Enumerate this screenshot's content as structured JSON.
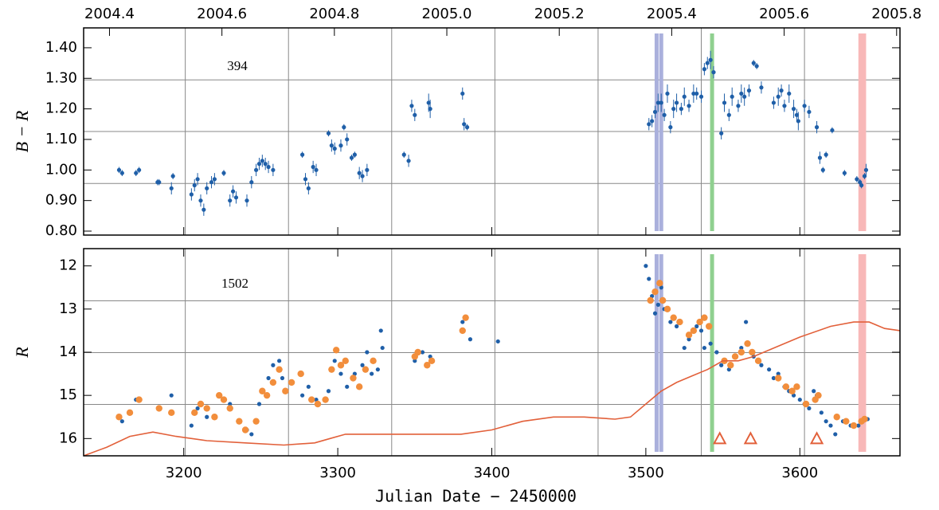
{
  "chart_data": [
    {
      "type": "scatter",
      "ylabel": "B − R",
      "annotation": "394",
      "xlim": [
        3135,
        3665
      ],
      "ylim": [
        0.787,
        1.465
      ],
      "xticks": [
        3200,
        3300,
        3400,
        3500,
        3600
      ],
      "yticks": [
        {
          "value": 0.8,
          "label": "0.80"
        },
        {
          "value": 0.9,
          "label": "0.90"
        },
        {
          "value": 1.0,
          "label": "1.00"
        },
        {
          "value": 1.1,
          "label": "1.10"
        },
        {
          "value": 1.2,
          "label": "1.20"
        },
        {
          "value": 1.3,
          "label": "1.30"
        },
        {
          "value": 1.4,
          "label": "1.40"
        }
      ],
      "x2lim": [
        2004.354,
        2005.806
      ],
      "x2ticks": [
        2004.4,
        2004.6,
        2004.8,
        {
          "value": 2005.0,
          "label": "2005.0"
        },
        2005.2,
        2005.4,
        2005.6,
        2005.8
      ],
      "xgrid": [
        3201,
        3268,
        3335,
        3402,
        3469,
        3536,
        3603
      ],
      "ygrid": [
        0.956,
        1.126,
        1.295
      ],
      "spans": [
        {
          "x0": 3507,
          "x1": 3507,
          "color": "#aab0dc"
        },
        {
          "x0": 3510,
          "x1": 3510,
          "color": "#aab0dc"
        },
        {
          "x0": 3543,
          "x1": 3543,
          "color": "#8fd08f"
        },
        {
          "x0": 3638,
          "x1": 3643,
          "color": "#f8b8b8"
        }
      ],
      "series": [
        {
          "color": "#1f5fa8",
          "x": [
            3158,
            3160,
            3169,
            3171,
            3183,
            3184,
            3192,
            3193,
            3205,
            3207,
            3209,
            3211,
            3213,
            3215,
            3218,
            3220,
            3226,
            3230,
            3232,
            3234,
            3241,
            3244,
            3247,
            3249,
            3251,
            3253,
            3255,
            3258,
            3277,
            3279,
            3281,
            3284,
            3286,
            3294,
            3296,
            3298,
            3302,
            3304,
            3306,
            3309,
            3311,
            3314,
            3316,
            3319,
            3343,
            3346,
            3348,
            3350,
            3359,
            3360,
            3381,
            3382,
            3384,
            3502,
            3504,
            3506,
            3508,
            3510,
            3512,
            3514,
            3516,
            3518,
            3520,
            3523,
            3525,
            3528,
            3531,
            3533,
            3536,
            3538,
            3540,
            3542,
            3544,
            3549,
            3551,
            3554,
            3556,
            3560,
            3562,
            3564,
            3567,
            3570,
            3572,
            3575,
            3583,
            3586,
            3588,
            3590,
            3593,
            3596,
            3598,
            3599,
            3603,
            3606,
            3611,
            3613,
            3615,
            3617,
            3621,
            3629,
            3637,
            3639,
            3640,
            3642,
            3643
          ],
          "values": [
            1.0,
            0.99,
            0.99,
            1.0,
            0.96,
            0.96,
            0.94,
            0.98,
            0.92,
            0.95,
            0.97,
            0.9,
            0.87,
            0.94,
            0.96,
            0.97,
            0.99,
            0.9,
            0.93,
            0.91,
            0.9,
            0.96,
            1.0,
            1.02,
            1.03,
            1.02,
            1.01,
            1.0,
            1.05,
            0.97,
            0.94,
            1.01,
            1.0,
            1.12,
            1.08,
            1.07,
            1.08,
            1.14,
            1.1,
            1.04,
            1.05,
            0.99,
            0.98,
            1.0,
            1.05,
            1.03,
            1.21,
            1.18,
            1.22,
            1.2,
            1.25,
            1.15,
            1.14,
            1.15,
            1.16,
            1.19,
            1.22,
            1.22,
            1.18,
            1.25,
            1.14,
            1.2,
            1.22,
            1.2,
            1.24,
            1.21,
            1.25,
            1.25,
            1.24,
            1.33,
            1.35,
            1.36,
            1.32,
            1.12,
            1.22,
            1.18,
            1.24,
            1.21,
            1.25,
            1.24,
            1.26,
            1.35,
            1.34,
            1.27,
            1.22,
            1.24,
            1.26,
            1.21,
            1.25,
            1.2,
            1.18,
            1.16,
            1.21,
            1.19,
            1.14,
            1.04,
            1.0,
            1.05,
            1.13,
            0.99,
            0.97,
            0.96,
            0.95,
            0.98,
            1.0
          ],
          "errors": [
            0.01,
            0.01,
            0.01,
            0.01,
            0.01,
            0.01,
            0.02,
            0.01,
            0.02,
            0.02,
            0.02,
            0.02,
            0.02,
            0.02,
            0.02,
            0.02,
            0.01,
            0.02,
            0.02,
            0.02,
            0.02,
            0.02,
            0.02,
            0.02,
            0.02,
            0.02,
            0.02,
            0.02,
            0.01,
            0.02,
            0.02,
            0.02,
            0.02,
            0.01,
            0.02,
            0.02,
            0.02,
            0.01,
            0.02,
            0.01,
            0.01,
            0.02,
            0.02,
            0.02,
            0.01,
            0.02,
            0.02,
            0.02,
            0.03,
            0.03,
            0.02,
            0.02,
            0.01,
            0.02,
            0.02,
            0.02,
            0.03,
            0.03,
            0.02,
            0.03,
            0.02,
            0.03,
            0.03,
            0.02,
            0.03,
            0.02,
            0.03,
            0.02,
            0.02,
            0.02,
            0.02,
            0.03,
            0.02,
            0.02,
            0.03,
            0.02,
            0.03,
            0.02,
            0.03,
            0.03,
            0.02,
            0.01,
            0.01,
            0.02,
            0.02,
            0.03,
            0.02,
            0.02,
            0.03,
            0.03,
            0.02,
            0.03,
            0.02,
            0.02,
            0.02,
            0.02,
            0.01,
            0.01,
            0.01,
            0.01,
            0.01,
            0.01,
            0.01,
            0.01,
            0.02
          ]
        }
      ]
    },
    {
      "type": "scatter",
      "ylabel": "R",
      "annotation": "1502",
      "xlabel": "Julian Date − 2450000",
      "xlim": [
        3135,
        3665
      ],
      "ylim": [
        16.4,
        11.6
      ],
      "xticks": [
        3200,
        3300,
        3400,
        3500,
        3600
      ],
      "yticks": [
        12,
        13,
        14,
        15,
        16
      ],
      "xgrid": [
        3201,
        3268,
        3335,
        3402,
        3469,
        3536,
        3603
      ],
      "ygrid": [
        12.81,
        14.01,
        15.21
      ],
      "spans": [
        {
          "x0": 3507,
          "x1": 3507,
          "color": "#aab0dc"
        },
        {
          "x0": 3510,
          "x1": 3510,
          "color": "#aab0dc"
        },
        {
          "x0": 3543,
          "x1": 3543,
          "color": "#8fd08f"
        },
        {
          "x0": 3638,
          "x1": 3643,
          "color": "#f8b8b8"
        }
      ],
      "series": [
        {
          "color": "#1f5fa8",
          "marker": "dot",
          "x": [
            3160,
            3169,
            3192,
            3205,
            3209,
            3215,
            3230,
            3241,
            3244,
            3249,
            3255,
            3258,
            3262,
            3264,
            3277,
            3281,
            3286,
            3294,
            3298,
            3302,
            3306,
            3311,
            3316,
            3319,
            3322,
            3326,
            3328,
            3329,
            3350,
            3355,
            3360,
            3381,
            3386,
            3404,
            3500,
            3502,
            3504,
            3506,
            3508,
            3510,
            3512,
            3516,
            3520,
            3525,
            3528,
            3533,
            3536,
            3538,
            3542,
            3546,
            3549,
            3554,
            3558,
            3562,
            3565,
            3570,
            3575,
            3580,
            3583,
            3586,
            3590,
            3593,
            3596,
            3600,
            3603,
            3606,
            3609,
            3611,
            3614,
            3617,
            3620,
            3623,
            3628,
            3633,
            3638,
            3641,
            3644
          ],
          "values": [
            15.6,
            15.1,
            15.0,
            15.7,
            15.3,
            15.5,
            15.2,
            15.8,
            15.9,
            15.2,
            14.6,
            14.3,
            14.2,
            14.6,
            15.0,
            14.8,
            15.1,
            14.9,
            14.2,
            14.5,
            14.8,
            14.5,
            14.3,
            14.0,
            14.5,
            14.4,
            13.5,
            13.9,
            14.2,
            14.0,
            14.1,
            13.3,
            13.7,
            13.75,
            12.0,
            12.3,
            12.7,
            13.1,
            12.9,
            12.5,
            13.0,
            13.3,
            13.4,
            13.9,
            13.7,
            13.4,
            13.5,
            13.9,
            13.8,
            14.0,
            14.3,
            14.4,
            14.1,
            13.9,
            13.3,
            14.1,
            14.3,
            14.4,
            14.6,
            14.5,
            14.8,
            14.9,
            15.0,
            15.1,
            15.2,
            15.3,
            14.9,
            15.0,
            15.4,
            15.6,
            15.7,
            15.9,
            15.6,
            15.7,
            15.7,
            15.6,
            15.55
          ]
        },
        {
          "color": "#f28e3c",
          "marker": "big",
          "x": [
            3158,
            3165,
            3171,
            3184,
            3192,
            3207,
            3211,
            3215,
            3220,
            3223,
            3226,
            3230,
            3236,
            3240,
            3247,
            3251,
            3254,
            3258,
            3262,
            3266,
            3270,
            3276,
            3283,
            3287,
            3292,
            3296,
            3299,
            3302,
            3305,
            3310,
            3314,
            3318,
            3323,
            3350,
            3352,
            3358,
            3361,
            3381,
            3383,
            3503,
            3506,
            3509,
            3511,
            3514,
            3518,
            3522,
            3528,
            3531,
            3535,
            3538,
            3541,
            3551,
            3555,
            3558,
            3562,
            3566,
            3569,
            3573,
            3586,
            3591,
            3595,
            3598,
            3604,
            3610,
            3612,
            3624,
            3630,
            3635,
            3640,
            3642
          ],
          "values": [
            15.5,
            15.4,
            15.1,
            15.3,
            15.4,
            15.4,
            15.2,
            15.3,
            15.5,
            15.0,
            15.1,
            15.3,
            15.6,
            15.8,
            15.6,
            14.9,
            15.0,
            14.7,
            14.4,
            14.9,
            14.7,
            14.5,
            15.1,
            15.2,
            15.1,
            14.4,
            13.95,
            14.3,
            14.2,
            14.6,
            14.8,
            14.4,
            14.2,
            14.1,
            14.0,
            14.3,
            14.2,
            13.5,
            13.2,
            12.8,
            12.6,
            12.4,
            12.8,
            13.0,
            13.2,
            13.3,
            13.6,
            13.5,
            13.3,
            13.2,
            13.4,
            14.2,
            14.3,
            14.1,
            14.0,
            13.8,
            14.0,
            14.2,
            14.6,
            14.8,
            14.9,
            14.8,
            15.2,
            15.1,
            15.0,
            15.5,
            15.6,
            15.7,
            15.6,
            15.55
          ]
        },
        {
          "color": "#e2603a",
          "marker": "line",
          "x": [
            3135,
            3150,
            3165,
            3180,
            3195,
            3215,
            3240,
            3265,
            3285,
            3295,
            3305,
            3320,
            3350,
            3380,
            3400,
            3420,
            3440,
            3460,
            3480,
            3490,
            3500,
            3510,
            3520,
            3530,
            3540,
            3550,
            3560,
            3570,
            3580,
            3600,
            3620,
            3635,
            3645,
            3655,
            3665
          ],
          "values": [
            16.4,
            16.2,
            15.95,
            15.85,
            15.95,
            16.05,
            16.1,
            16.15,
            16.1,
            16.0,
            15.9,
            15.9,
            15.9,
            15.9,
            15.8,
            15.6,
            15.5,
            15.5,
            15.55,
            15.5,
            15.2,
            14.9,
            14.7,
            14.55,
            14.4,
            14.2,
            14.2,
            14.1,
            13.95,
            13.65,
            13.4,
            13.3,
            13.3,
            13.45,
            13.5
          ]
        },
        {
          "color": "#e2603a",
          "marker": "triangle",
          "x": [
            3548,
            3568,
            3611
          ],
          "values": [
            16.0,
            16.0,
            16.0
          ]
        }
      ]
    }
  ]
}
